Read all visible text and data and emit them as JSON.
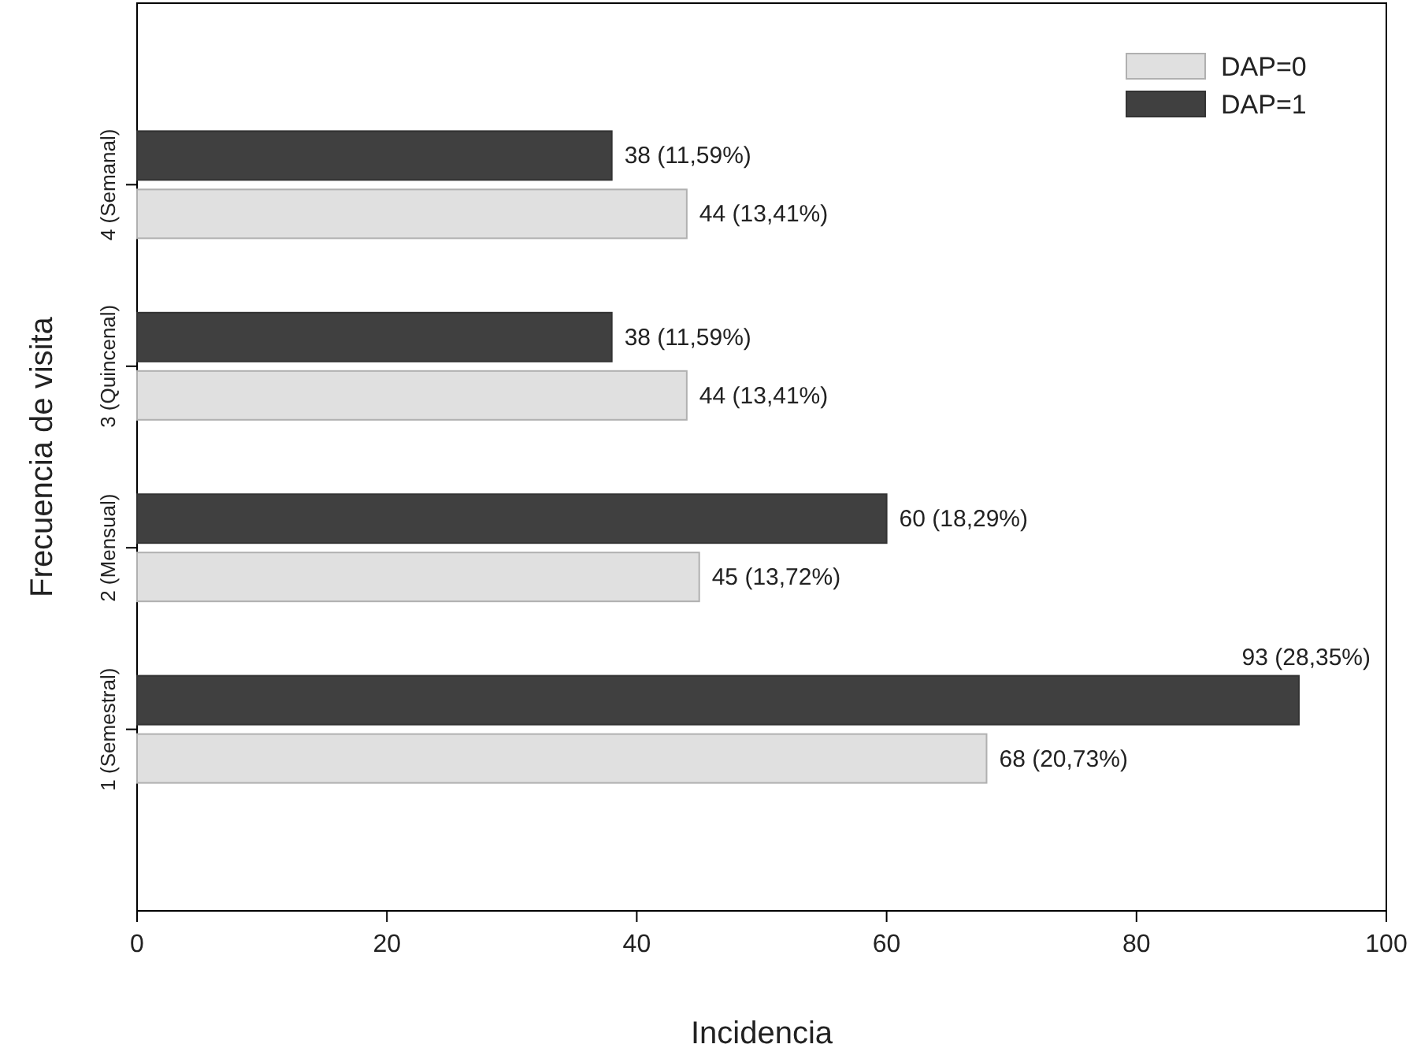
{
  "chart_data": {
    "type": "bar",
    "orientation": "horizontal",
    "xlabel": "Incidencia",
    "ylabel": "Frecuencia de visita",
    "categories": [
      "4 (Semanal)",
      "3 (Quincenal)",
      "2 (Mensual)",
      "1 (Semestral)"
    ],
    "series": [
      {
        "name": "DAP=0",
        "color": "#e0e0e0",
        "values": [
          44,
          44,
          45,
          68
        ],
        "value_labels": [
          "44 (13,41%)",
          "44 (13,41%)",
          "45 (13,72%)",
          "68 (20,73%)"
        ]
      },
      {
        "name": "DAP=1",
        "color": "#404040",
        "values": [
          38,
          38,
          60,
          93
        ],
        "value_labels": [
          "38 (11,59%)",
          "38 (11,59%)",
          "60 (18,29%)",
          "93 (28,35%)"
        ]
      }
    ],
    "xlim": [
      0,
      100
    ],
    "xticks": [
      0,
      20,
      40,
      60,
      80,
      100
    ],
    "grid": false,
    "legend": "top right"
  }
}
